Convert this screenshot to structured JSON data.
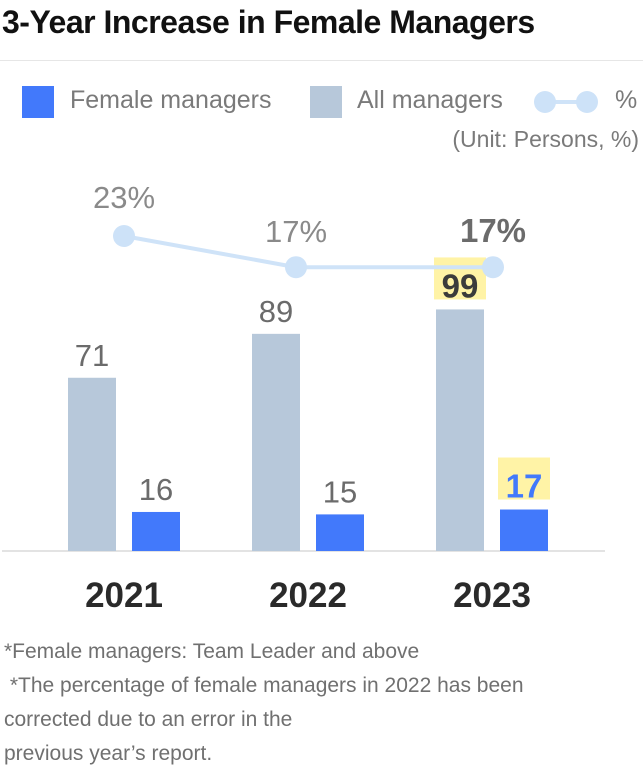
{
  "title": "3-Year Increase in Female Managers",
  "legend": {
    "female": "Female managers",
    "all": "All managers",
    "pct": "%"
  },
  "unit": "(Unit: Persons, %)",
  "colors": {
    "female": "#4279fb",
    "all": "#b7c8da",
    "pct_line": "#cfe3f8",
    "pct_dot": "#cde2f8",
    "highlight": "#fff3a6",
    "label_gray": "#6b6b6b",
    "label_dark": "#3b3b3b"
  },
  "chart_data": {
    "type": "bar",
    "categories": [
      "2021",
      "2022",
      "2023"
    ],
    "series": [
      {
        "name": "All managers",
        "values": [
          71,
          89,
          99
        ]
      },
      {
        "name": "Female managers",
        "values": [
          16,
          15,
          17
        ]
      }
    ],
    "line_series": {
      "name": "%",
      "values": [
        23,
        17,
        17
      ],
      "labels": [
        "23%",
        "17%",
        "17%"
      ]
    },
    "highlight_year": "2023",
    "ylim": [
      0,
      115
    ]
  },
  "notes": [
    "*Female managers: Team Leader and above",
    " *The percentage of female managers in 2022 has been",
    "corrected due to an error in the",
    "previous year’s report."
  ]
}
